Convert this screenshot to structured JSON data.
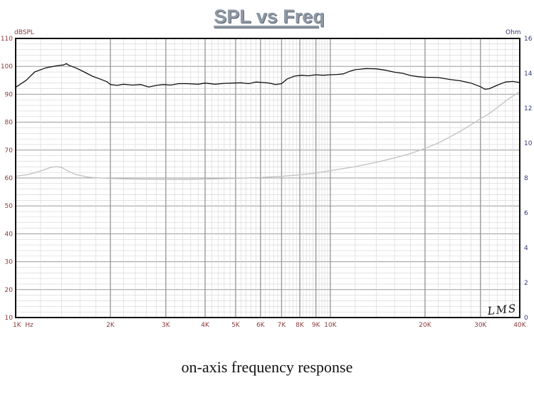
{
  "chart_data": {
    "type": "line",
    "title": "SPL vs Freq",
    "caption": "on-axis frequency response",
    "watermark": "LMS",
    "xscale": "log",
    "xlim": [
      1000,
      40000
    ],
    "x_ticks": [
      {
        "value": 1000,
        "label": "1K  Hz"
      },
      {
        "value": 2000,
        "label": "2K"
      },
      {
        "value": 3000,
        "label": "3K"
      },
      {
        "value": 4000,
        "label": "4K"
      },
      {
        "value": 5000,
        "label": "5K"
      },
      {
        "value": 6000,
        "label": "6K"
      },
      {
        "value": 7000,
        "label": "7K"
      },
      {
        "value": 8000,
        "label": "8K"
      },
      {
        "value": 9000,
        "label": "9K"
      },
      {
        "value": 10000,
        "label": "10K"
      },
      {
        "value": 20000,
        "label": "20K"
      },
      {
        "value": 30000,
        "label": "30K"
      },
      {
        "value": 40000,
        "label": "40K"
      }
    ],
    "y_left": {
      "unit": "dBSPL",
      "ylim": [
        10,
        110
      ],
      "ticks": [
        10,
        20,
        30,
        40,
        50,
        60,
        70,
        80,
        90,
        100,
        110
      ]
    },
    "y_right": {
      "unit": "Ohm",
      "ylim": [
        0,
        16
      ],
      "ticks": [
        0,
        2,
        4,
        6,
        8,
        10,
        12,
        14,
        16
      ]
    },
    "grid": true,
    "colors": {
      "spl": "#111111",
      "impedance": "#c4c4c4",
      "grid": "#9a9a9a",
      "left_ticks": "#8b3a3a",
      "right_ticks": "#2e3a7a",
      "x_ticks": "#8b3a3a"
    },
    "series": [
      {
        "axis": "left",
        "x": [
          1000,
          1080,
          1150,
          1250,
          1350,
          1420,
          1450,
          1480,
          1550,
          1650,
          1750,
          1850,
          1950,
          2000,
          2100,
          2200,
          2350,
          2500,
          2650,
          2800,
          2950,
          3100,
          3300,
          3500,
          3800,
          4000,
          4300,
          4600,
          4900,
          5200,
          5500,
          5800,
          6100,
          6400,
          6700,
          7000,
          7300,
          7700,
          8100,
          8500,
          9000,
          9500,
          10000,
          10500,
          11000,
          11500,
          12000,
          13000,
          14000,
          15000,
          16000,
          17000,
          18000,
          19000,
          20000,
          22000,
          24000,
          26000,
          28000,
          30000,
          31000,
          32000,
          34000,
          36000,
          38000,
          40000
        ],
        "y": [
          92.5,
          95,
          98,
          99.5,
          100.2,
          100.5,
          101,
          100.3,
          99.5,
          98,
          96.5,
          95.5,
          94.5,
          93.5,
          93.2,
          93.6,
          93.3,
          93.5,
          92.6,
          93.2,
          93.5,
          93.3,
          93.8,
          93.8,
          93.6,
          94.0,
          93.6,
          93.9,
          94.0,
          94.1,
          93.8,
          94.4,
          94.2,
          94.0,
          93.5,
          93.8,
          95.5,
          96.5,
          96.8,
          96.6,
          97.0,
          96.8,
          97.0,
          97.1,
          97.3,
          98.2,
          98.8,
          99.2,
          99.1,
          98.6,
          97.9,
          97.5,
          96.7,
          96.3,
          96.1,
          96.0,
          95.3,
          94.8,
          94.0,
          92.7,
          91.8,
          92.0,
          93.3,
          94.4,
          94.6,
          94.2
        ]
      },
      {
        "axis": "right",
        "x": [
          1000,
          1100,
          1200,
          1300,
          1350,
          1400,
          1450,
          1550,
          1700,
          1850,
          2000,
          2200,
          2500,
          3000,
          3500,
          4000,
          5000,
          6000,
          7000,
          8000,
          9000,
          10000,
          12000,
          14000,
          16000,
          18000,
          20000,
          22000,
          24000,
          26000,
          28000,
          30000,
          32000,
          34000,
          36000,
          38000,
          40000
        ],
        "y": [
          8.1,
          8.2,
          8.4,
          8.62,
          8.65,
          8.6,
          8.45,
          8.2,
          8.05,
          8.0,
          7.97,
          7.95,
          7.93,
          7.92,
          7.92,
          7.94,
          7.98,
          8.03,
          8.1,
          8.18,
          8.28,
          8.42,
          8.65,
          8.9,
          9.15,
          9.4,
          9.7,
          10.0,
          10.35,
          10.7,
          11.05,
          11.4,
          11.7,
          12.05,
          12.4,
          12.7,
          12.95
        ]
      }
    ]
  }
}
